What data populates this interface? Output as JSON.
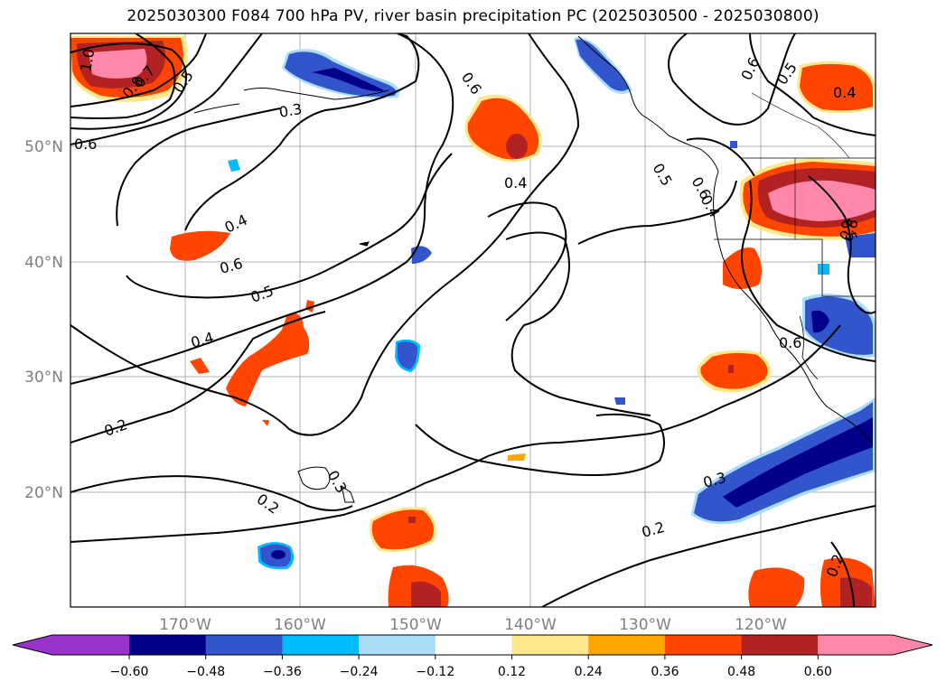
{
  "title": "2025030300 F084 700 hPa PV, river basin precipitation PC (2025030500 - 2025030800)",
  "map": {
    "lat_labels": [
      "50°N",
      "40°N",
      "30°N",
      "20°N"
    ],
    "lon_labels": [
      "170°W",
      "160°W",
      "150°W",
      "140°W",
      "130°W",
      "120°W"
    ],
    "contour_labels": [
      "1.0",
      "0.7",
      "0.8",
      "0.5",
      "0.6",
      "0.3",
      "0.6",
      "0.4",
      "0.5",
      "0.6",
      "0.5",
      "0.4",
      "0.4",
      "0.6",
      "0.5",
      "0.4",
      "0.6",
      "0.2",
      "0.2",
      "0.3",
      "0.3",
      "0.2",
      "0.6",
      "0.4",
      "0.5",
      "0.6",
      "0.2"
    ]
  },
  "colorbar": {
    "ticks": [
      "−0.60",
      "−0.48",
      "−0.36",
      "−0.24",
      "−0.12",
      "0.12",
      "0.24",
      "0.36",
      "0.48",
      "0.60"
    ],
    "colors": [
      "#9933cc",
      "#00008b",
      "#3355cc",
      "#00bbff",
      "#aaddf7",
      "#ffffff",
      "#ffe88c",
      "#ffa500",
      "#ff4500",
      "#b22222",
      "#ff88aa",
      "#ff88aa"
    ]
  }
}
